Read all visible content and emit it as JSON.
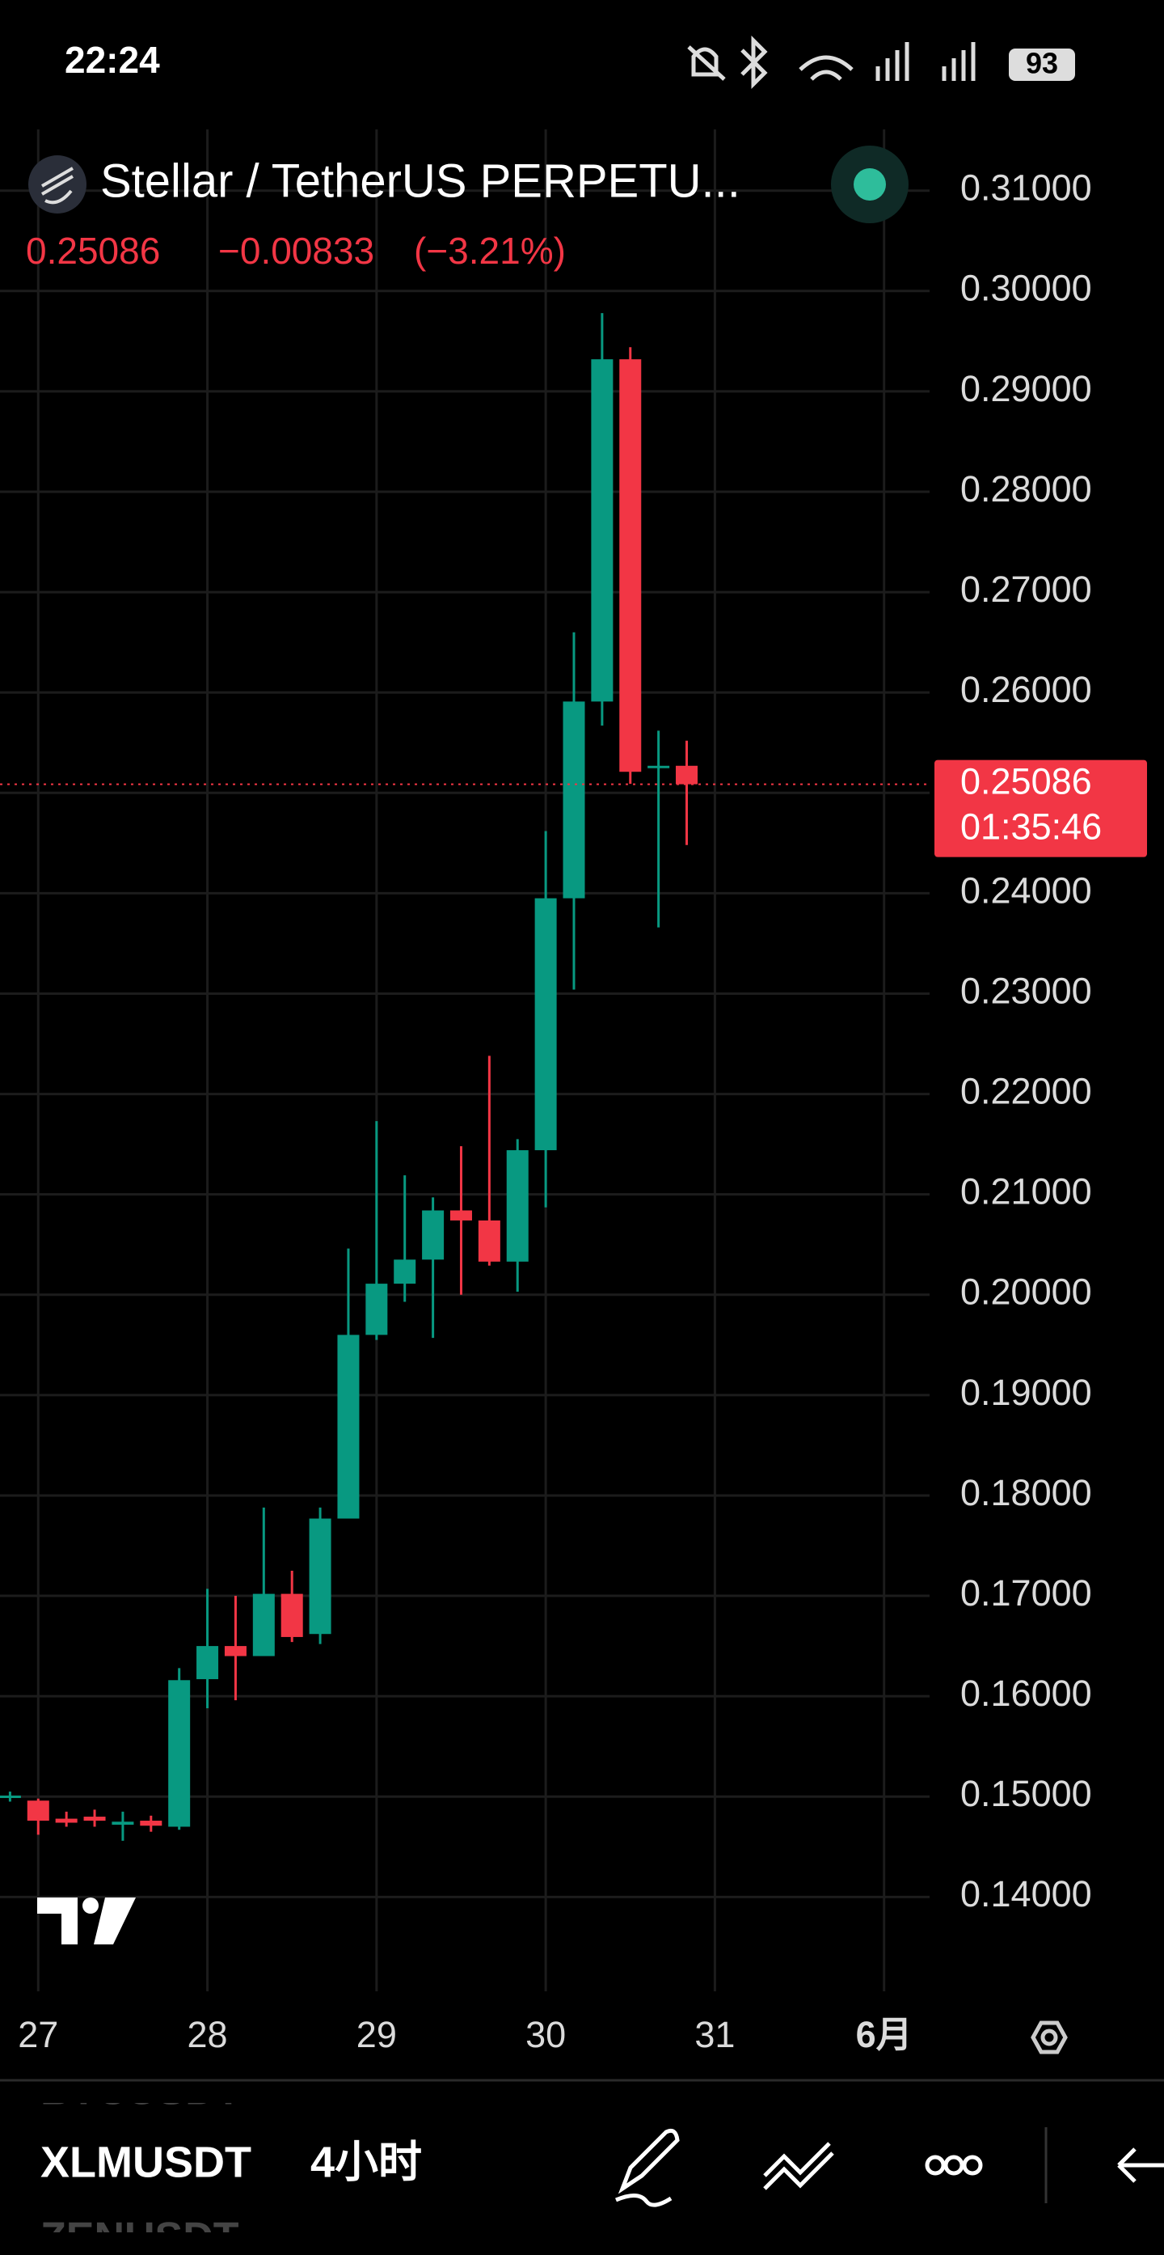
{
  "status_bar": {
    "time": "22:24",
    "battery": "93"
  },
  "header": {
    "title": "Stellar / TetherUS PERPETU...",
    "price": "0.25086",
    "change": "−0.00833",
    "change_pct": "(−3.21%)"
  },
  "chart_data": {
    "type": "candlestick",
    "categories": [
      null,
      "27",
      null,
      null,
      null,
      null,
      null,
      "28",
      null,
      null,
      null,
      null,
      null,
      "29",
      null,
      null,
      null,
      null,
      null,
      "30",
      null,
      null,
      null,
      null,
      null,
      "31",
      null,
      null,
      null,
      null,
      null,
      "6月"
    ],
    "open": [
      0.15,
      0.1496,
      0.1478,
      0.148,
      0.1472,
      0.1476,
      0.147,
      0.1617,
      0.165,
      0.164,
      0.1702,
      0.1662,
      0.1777,
      0.196,
      0.2011,
      0.2035,
      0.2084,
      0.2074,
      0.2033,
      0.2144,
      0.2395,
      0.2591,
      0.2932,
      0.2525,
      0.2527,
      null,
      null,
      null,
      null,
      null,
      null,
      null
    ],
    "high": [
      0.1505,
      0.1498,
      0.1485,
      0.1487,
      0.1485,
      0.1481,
      0.1628,
      0.1707,
      0.17,
      0.1788,
      0.1725,
      0.1788,
      0.2046,
      0.2173,
      0.2119,
      0.2097,
      0.2148,
      0.2238,
      0.2155,
      0.2462,
      0.266,
      0.2978,
      0.2944,
      0.2562,
      0.2552,
      null,
      null,
      null,
      null,
      null,
      null,
      null
    ],
    "low": [
      0.1495,
      0.1462,
      0.147,
      0.147,
      0.1456,
      0.1465,
      0.1467,
      0.1588,
      0.1596,
      0.164,
      0.1654,
      0.1652,
      0.1777,
      0.1955,
      0.1993,
      0.1957,
      0.2,
      0.2029,
      0.2003,
      0.2087,
      0.2304,
      0.2567,
      0.2509,
      0.2366,
      0.2448,
      null,
      null,
      null,
      null,
      null,
      null,
      null
    ],
    "close": [
      0.1501,
      0.1476,
      0.1474,
      0.1476,
      0.1475,
      0.1471,
      0.1616,
      0.165,
      0.164,
      0.1702,
      0.1659,
      0.1777,
      0.196,
      0.2011,
      0.2035,
      0.2084,
      0.2074,
      0.2033,
      0.2144,
      0.2395,
      0.2591,
      0.2932,
      0.2521,
      0.2527,
      0.25086,
      null,
      null,
      null,
      null,
      null,
      null,
      null
    ],
    "up_color": "#089981",
    "down_color": "#f23645",
    "ylim": [
      0.1306,
      0.3161
    ],
    "yticks": [
      {
        "value": 0.14,
        "label": "0.14000"
      },
      {
        "value": 0.15,
        "label": "0.15000"
      },
      {
        "value": 0.16,
        "label": "0.16000"
      },
      {
        "value": 0.17,
        "label": "0.17000"
      },
      {
        "value": 0.18,
        "label": "0.18000"
      },
      {
        "value": 0.19,
        "label": "0.19000"
      },
      {
        "value": 0.2,
        "label": "0.20000"
      },
      {
        "value": 0.21,
        "label": "0.21000"
      },
      {
        "value": 0.22,
        "label": "0.22000"
      },
      {
        "value": 0.23,
        "label": "0.23000"
      },
      {
        "value": 0.24,
        "label": "0.24000"
      },
      {
        "value": 0.25,
        "label": "0.25000"
      },
      {
        "value": 0.26,
        "label": "0.26000"
      },
      {
        "value": 0.27,
        "label": "0.27000"
      },
      {
        "value": 0.28,
        "label": "0.28000"
      },
      {
        "value": 0.29,
        "label": "0.29000"
      },
      {
        "value": 0.3,
        "label": "0.30000"
      },
      {
        "value": 0.31,
        "label": "0.31000"
      }
    ],
    "last_price": 0.25086,
    "countdown": "01:35:46",
    "grid": true
  },
  "bottom_bar": {
    "symbol_above": "BTCUSDT",
    "symbol": "XLMUSDT",
    "symbol_below": "ZENUSDT",
    "interval": "4小时"
  }
}
